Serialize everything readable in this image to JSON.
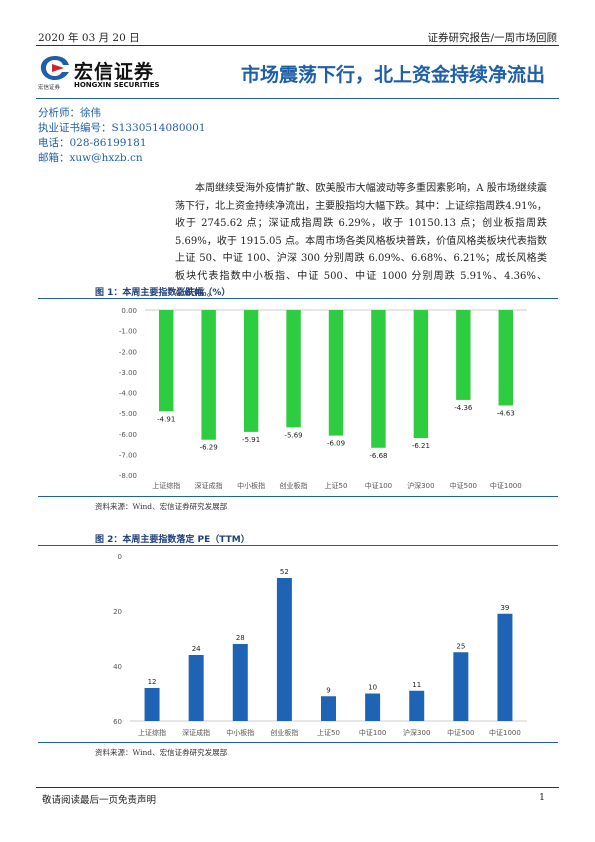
{
  "header": {
    "date": "2020 年 03 月 20 日",
    "report_type": "证券研究报告/一周市场回顾",
    "title": "市场震荡下行，北上资金持续净流出"
  },
  "logo": {
    "name_cn": "宏信证券",
    "name_en": "HONGXIN SECURITIES",
    "name_cn_small": "宏信证券",
    "colors": {
      "blue": "#1f5fa8",
      "red": "#d0242b"
    }
  },
  "analyst": {
    "name": "分析师：徐伟",
    "license": "执业证书编号：S1330514080001",
    "phone": "电话：028-86199181",
    "email": "邮箱：xuw@hxzb.cn"
  },
  "summary": "本周继续受海外疫情扩散、欧美股市大幅波动等多重因素影响，A 股市场继续震荡下行，北上资金持续净流出，主要股指均大幅下跌。其中：上证综指周跌4.91%，收于 2745.62 点；深证成指周跌 6.29%，收于 10150.13 点；创业板指周跌 5.69%，收于 1915.05 点。本周市场各类风格板块普跌，价值风格类板块代表指数上证 50、中证 100、沪深 300 分别周跌 6.09%、6.68%、6.21%；成长风格类板块代表指数中小板指、中证 500、中证 1000 分别周跌 5.91%、4.36%、4.63%。",
  "figure1": {
    "title": "图 1：本周主要指数涨跌幅（%）",
    "source": "资料来源：Wind、宏信证券研究发展部"
  },
  "figure2": {
    "title": "图 2：本周主要指数落定 PE（TTM）",
    "source": "资料来源：Wind、宏信证券研究发展部"
  },
  "footer": {
    "disclaimer": "敬请阅读最后一页免责声明",
    "page": "1"
  },
  "chart_data": [
    {
      "type": "bar",
      "categories": [
        "上证综指",
        "深证成指",
        "中小板指",
        "创业板指",
        "上证50",
        "中证100",
        "沪深300",
        "中证500",
        "中证1000"
      ],
      "values": [
        -4.91,
        -6.29,
        -5.91,
        -5.69,
        -6.09,
        -6.68,
        -6.21,
        -4.36,
        -4.63
      ],
      "value_labels": [
        "-4.91",
        "-6.29",
        "-5.91",
        "-5.69",
        "-6.09",
        "-6.68",
        "-6.21",
        "-4.36",
        "-4.63"
      ],
      "ylim": [
        -8,
        0
      ],
      "ytick_labels": [
        "0.00",
        "-1.00",
        "-2.00",
        "-3.00",
        "-4.00",
        "-5.00",
        "-6.00",
        "-7.00",
        "-8.00"
      ],
      "color": "#2ecc40",
      "grid": false
    },
    {
      "type": "bar",
      "categories": [
        "上证综指",
        "深证成指",
        "中小板指",
        "创业板指",
        "上证50",
        "中证100",
        "沪深300",
        "中证500",
        "中证1000"
      ],
      "values": [
        12,
        24,
        28,
        52,
        9,
        10,
        11,
        25,
        39
      ],
      "ylim": [
        0,
        60
      ],
      "ytick_labels": [
        "0",
        "20",
        "40",
        "60"
      ],
      "color": "#1f64b4",
      "grid": false
    }
  ]
}
